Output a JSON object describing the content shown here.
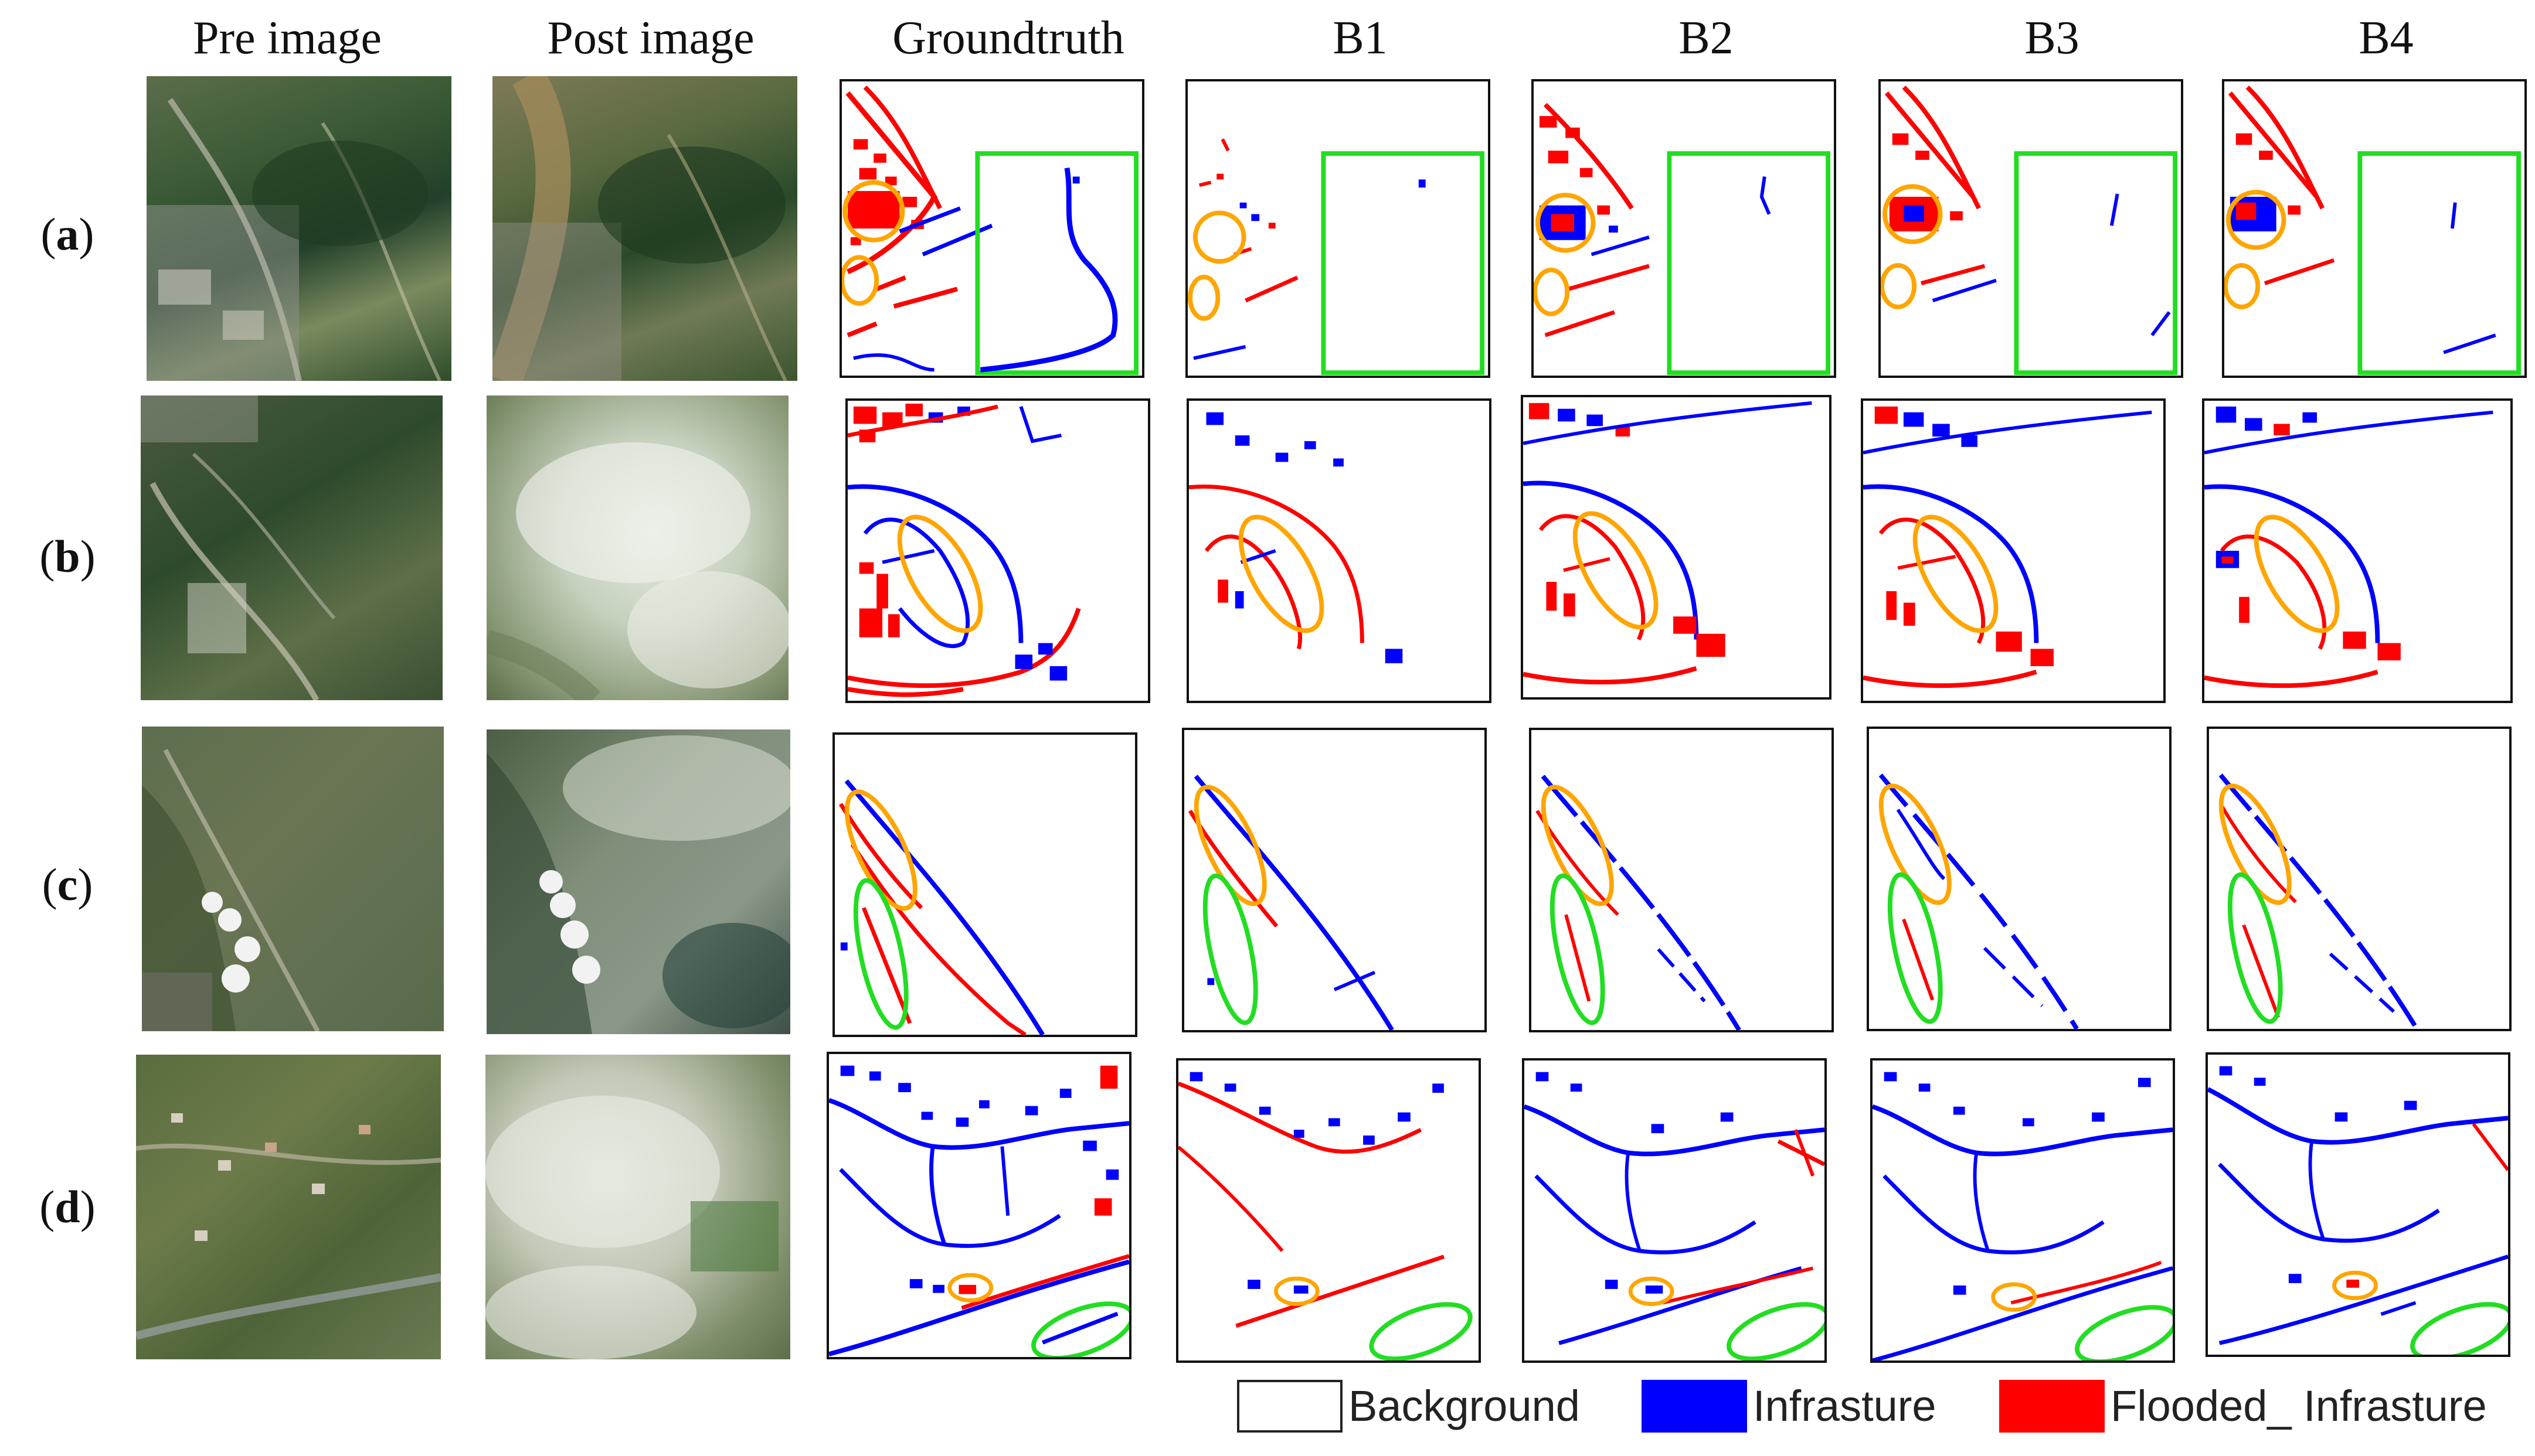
{
  "columns": [
    "Pre image",
    "Post image",
    "Groundtruth",
    "B1",
    "B2",
    "B3",
    "B4"
  ],
  "rows": [
    {
      "open": "(",
      "letter": "a",
      "close": ")"
    },
    {
      "open": "(",
      "letter": "b",
      "close": ")"
    },
    {
      "open": "(",
      "letter": "c",
      "close": ")"
    },
    {
      "open": "(",
      "letter": "d",
      "close": ")"
    }
  ],
  "legend": [
    {
      "label": "Background",
      "color": "#ffffff"
    },
    {
      "label": "Infrasture",
      "color": "#0000ff"
    },
    {
      "label": "Flooded_ Infrasture",
      "color": "#ff0000"
    }
  ],
  "colors": {
    "infrastructure": "#0000ff",
    "flooded": "#ff0000",
    "orange_highlight": "#ffa500",
    "green_highlight": "#22dd22",
    "border": "#111111"
  }
}
